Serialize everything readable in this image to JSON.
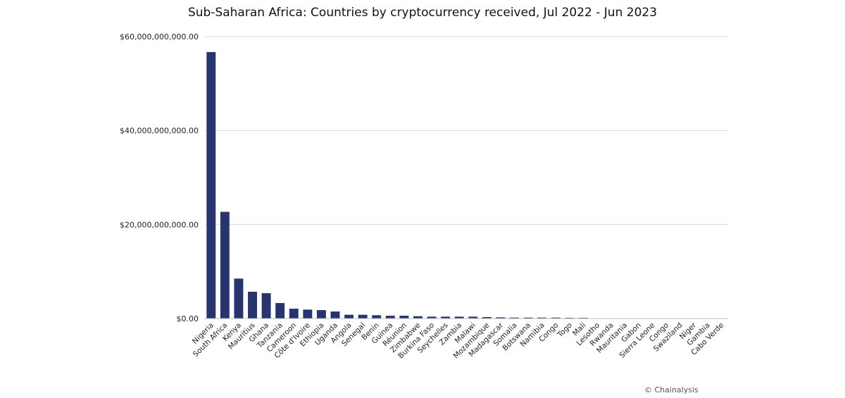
{
  "chart_data": {
    "type": "bar",
    "title": "Sub-Saharan Africa: Countries by cryptocurrency received, Jul 2022 - Jun 2023",
    "xlabel": "",
    "ylabel": "",
    "ylim": [
      0,
      60000000000
    ],
    "yticks": [
      {
        "value": 0,
        "label": "$0.00"
      },
      {
        "value": 20000000000,
        "label": "$20,000,000,000.00"
      },
      {
        "value": 40000000000,
        "label": "$40,000,000,000.00"
      },
      {
        "value": 60000000000,
        "label": "$60,000,000,000.00"
      }
    ],
    "grid": true,
    "bar_color": "#27346E",
    "categories": [
      "Nigeria",
      "South Africa",
      "Kenya",
      "Mauritius",
      "Ghana",
      "Tanzania",
      "Cameroon",
      "Côte d'Ivoire",
      "Ethiopia",
      "Uganda",
      "Angola",
      "Senegal",
      "Benin",
      "Guinea",
      "Réunion",
      "Zimbabwe",
      "Burkina Faso",
      "Seychelles",
      "Zambia",
      "Malawi",
      "Mozambique",
      "Madagascar",
      "Somalia",
      "Botswana",
      "Namibia",
      "Congo",
      "Togo",
      "Mali",
      "Lesotho",
      "Rwanda",
      "Mauritania",
      "Gabon",
      "Sierra Leone",
      "Congo",
      "Swaziland",
      "Niger",
      "Gambia",
      "Cabo Verde"
    ],
    "values": [
      56700000000,
      22700000000,
      8500000000,
      5700000000,
      5400000000,
      3300000000,
      2100000000,
      1900000000,
      1800000000,
      1500000000,
      800000000,
      800000000,
      700000000,
      600000000,
      600000000,
      500000000,
      400000000,
      400000000,
      400000000,
      400000000,
      300000000,
      250000000,
      200000000,
      200000000,
      200000000,
      200000000,
      150000000,
      150000000,
      50000000,
      40000000,
      30000000,
      25000000,
      20000000,
      20000000,
      15000000,
      10000000,
      10000000,
      5000000
    ]
  },
  "credit": "© Chainalysis"
}
